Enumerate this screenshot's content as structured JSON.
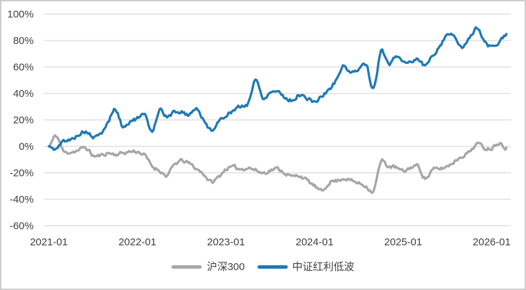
{
  "chart_data": {
    "type": "line",
    "title": "",
    "x_axis": {
      "tick_labels": [
        "2021-01",
        "2022-01",
        "2023-01",
        "2024-01",
        "2025-01",
        "2026-01"
      ],
      "tick_month_index": [
        0,
        12,
        24,
        36,
        48,
        60
      ],
      "x_monthly_from": "2021-01",
      "x_range_months": [
        0,
        62
      ]
    },
    "y_axis": {
      "tick_labels": [
        "100%",
        "80%",
        "60%",
        "40%",
        "20%",
        "0%",
        "-20%",
        "-40%",
        "-60%"
      ],
      "tick_values": [
        100,
        80,
        60,
        40,
        20,
        0,
        -20,
        -40,
        -60
      ],
      "ylim": [
        -60,
        100
      ],
      "unit": "%"
    },
    "grid": "horizontal-only",
    "legend_position": "bottom-center",
    "series": [
      {
        "name": "沪深300",
        "color": "#a6a6a6",
        "values_pct_monthly": [
          0,
          8,
          -4,
          -4,
          -3,
          -1,
          -7,
          -7,
          -5,
          -6,
          -5,
          -4,
          -4,
          -7,
          -15,
          -18,
          -22,
          -14,
          -11,
          -13,
          -17,
          -21,
          -27,
          -23,
          -17,
          -16,
          -17,
          -16,
          -18,
          -20,
          -18,
          -17,
          -20,
          -23,
          -22,
          -26,
          -30,
          -34,
          -27,
          -26,
          -24,
          -26,
          -28,
          -30,
          -33,
          -12,
          -15,
          -16,
          -19,
          -16,
          -15,
          -24,
          -18,
          -17,
          -15,
          -11,
          -7,
          -4,
          2,
          -1,
          -1,
          3,
          -1
        ]
      },
      {
        "name": "中证红利低波",
        "color": "#1e79b6",
        "values_pct_monthly": [
          0,
          -2,
          4,
          5,
          9,
          11,
          7,
          9,
          18,
          28,
          15,
          19,
          21,
          23,
          12,
          28,
          22,
          26,
          26,
          24,
          29,
          19,
          13,
          18,
          24,
          27,
          30,
          33,
          50,
          37,
          41,
          42,
          37,
          35,
          39,
          36,
          34,
          38,
          43,
          51,
          61,
          55,
          59,
          62,
          43,
          72,
          62,
          68,
          65,
          64,
          66,
          61,
          69,
          76,
          85,
          83,
          74,
          83,
          89,
          80,
          75,
          78,
          85
        ]
      }
    ]
  },
  "style": {
    "background": "#ffffff",
    "frame_border_color": "#cdcdcd",
    "gridline_color": "#d9d9d9",
    "text_color": "#3f3f3f",
    "series_gray": "#a6a6a6",
    "series_blue": "#1e79b6"
  }
}
